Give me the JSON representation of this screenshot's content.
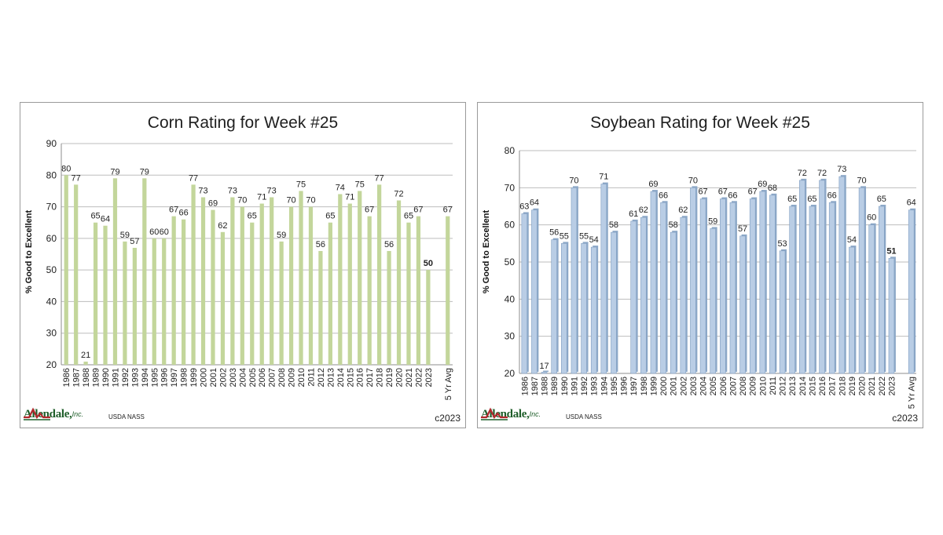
{
  "chart_data": [
    {
      "type": "bar",
      "title": "Corn Rating for Week #25",
      "ylabel": "% Good to Excellent",
      "xlabel": "",
      "ylim": [
        20,
        90
      ],
      "yticks": [
        20,
        30,
        40,
        50,
        60,
        70,
        80,
        90
      ],
      "grid": true,
      "bar_color": "#c3d69b",
      "categories": [
        "1986",
        "1987",
        "1988",
        "1989",
        "1990",
        "1991",
        "1992",
        "1993",
        "1994",
        "1995",
        "1996",
        "1997",
        "1998",
        "1999",
        "2000",
        "2001",
        "2002",
        "2003",
        "2004",
        "2005",
        "2006",
        "2007",
        "2008",
        "2009",
        "2010",
        "2011",
        "2012",
        "2013",
        "2014",
        "2015",
        "2016",
        "2017",
        "2018",
        "2019",
        "2020",
        "2021",
        "2022",
        "2023",
        "",
        "5 Yr Avg"
      ],
      "values": [
        80,
        77,
        21,
        65,
        64,
        79,
        59,
        57,
        79,
        60,
        60,
        67,
        66,
        77,
        73,
        69,
        62,
        73,
        70,
        65,
        71,
        73,
        59,
        70,
        75,
        70,
        56,
        65,
        74,
        71,
        75,
        67,
        77,
        56,
        72,
        65,
        67,
        50,
        null,
        67
      ],
      "value_labels": [
        "80",
        "77",
        "21",
        "65",
        "64",
        "79",
        "59",
        "57",
        "79",
        "60",
        "60",
        "67",
        "66",
        "77",
        "73",
        "69",
        "62",
        "73",
        "70",
        "65",
        "71",
        "73",
        "59",
        "70",
        "75",
        "70",
        "56",
        "65",
        "74",
        "71",
        "75",
        "67",
        "77",
        "56",
        "72",
        "65",
        "67",
        "50",
        "",
        "67"
      ],
      "highlight_index": 37,
      "logo_text": "Allendale,",
      "logo_suffix": "Inc.",
      "source": "USDA NASS",
      "copyright": "c2023"
    },
    {
      "type": "bar",
      "title": "Soybean Rating for Week #25",
      "ylabel": "% Good to Excellent",
      "xlabel": "",
      "ylim": [
        20,
        80
      ],
      "yticks": [
        20,
        30,
        40,
        50,
        60,
        70,
        80
      ],
      "grid": true,
      "bar_color": "#b9cde5",
      "categories": [
        "1986",
        "1987",
        "1988",
        "1989",
        "1990",
        "1991",
        "1992",
        "1993",
        "1994",
        "1995",
        "1996",
        "1997",
        "1998",
        "1999",
        "2000",
        "2001",
        "2002",
        "2003",
        "2004",
        "2005",
        "2006",
        "2007",
        "2008",
        "2009",
        "2010",
        "2011",
        "2012",
        "2013",
        "2014",
        "2015",
        "2016",
        "2017",
        "2018",
        "2019",
        "2020",
        "2021",
        "2022",
        "2023",
        "",
        "5 Yr Avg"
      ],
      "values": [
        63,
        64,
        17,
        56,
        55,
        70,
        55,
        54,
        71,
        58,
        null,
        61,
        62,
        69,
        66,
        58,
        62,
        70,
        67,
        59,
        67,
        66,
        57,
        67,
        69,
        68,
        53,
        65,
        72,
        65,
        72,
        66,
        73,
        54,
        70,
        60,
        65,
        51,
        null,
        64
      ],
      "value_labels": [
        "63",
        "64",
        "17",
        "56",
        "55",
        "70",
        "55",
        "54",
        "71",
        "58",
        "",
        "61",
        "62",
        "69",
        "66",
        "58",
        "62",
        "70",
        "67",
        "59",
        "67",
        "66",
        "57",
        "67",
        "69",
        "68",
        "53",
        "65",
        "72",
        "65",
        "72",
        "66",
        "73",
        "54",
        "70",
        "60",
        "65",
        "51",
        "",
        "64"
      ],
      "highlight_index": 37,
      "logo_text": "Allendale,",
      "logo_suffix": "Inc.",
      "source": "USDA NASS",
      "copyright": "c2023"
    }
  ]
}
